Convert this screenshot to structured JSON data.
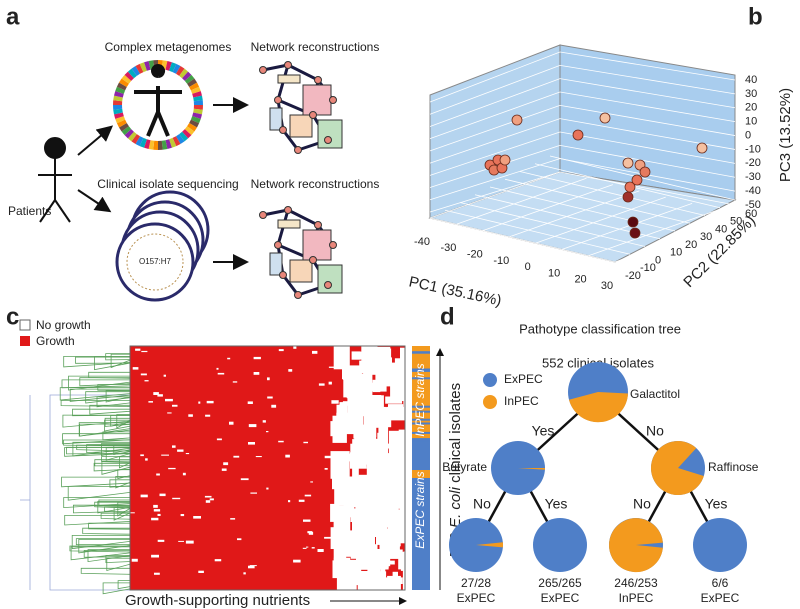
{
  "panels": {
    "a": {
      "label": "a",
      "patients": "Patients",
      "top_title": "Complex metagenomes",
      "top_right": "Network reconstructions",
      "bottom_title": "Clinical isolate sequencing",
      "bottom_right": "Network reconstructions",
      "isolate_tag": "O157:H7"
    },
    "b": {
      "label": "b",
      "x_axis": "PC1 (35.16%)",
      "y_axis": "PC2 (22.85%)",
      "z_axis": "PC3 (13.52%)",
      "x_ticks": [
        -40,
        -30,
        -20,
        -10,
        0,
        10,
        20,
        30
      ],
      "y_ticks": [
        -20,
        -10,
        0,
        10,
        20,
        30,
        40,
        50,
        60
      ],
      "z_ticks": [
        40,
        30,
        20,
        10,
        0,
        -10,
        -20,
        -30,
        -40,
        -50
      ]
    },
    "c": {
      "label": "c",
      "legend": [
        "No growth",
        "Growth"
      ],
      "x_label": "Growth-supporting nutrients",
      "y_label": [
        "552 ",
        "E. coli",
        " clinical isolates"
      ],
      "strain_top": "InPEC strains",
      "strain_bottom": "ExPEC strains"
    },
    "d": {
      "label": "d",
      "title": "Pathotype classification tree",
      "root_label": "552 clinical isolates",
      "legend": [
        "ExPEC",
        "InPEC"
      ],
      "root_feature": "Galactitol",
      "left_feature": "Butyrate",
      "right_feature": "Raffinose",
      "branches": [
        "Yes",
        "No",
        "No",
        "Yes",
        "No",
        "Yes"
      ],
      "leaves": [
        {
          "count": "27/28",
          "class": "ExPEC"
        },
        {
          "count": "265/265",
          "class": "ExPEC"
        },
        {
          "count": "246/253",
          "class": "InPEC"
        },
        {
          "count": "6/6",
          "class": "ExPEC"
        }
      ]
    }
  }
}
